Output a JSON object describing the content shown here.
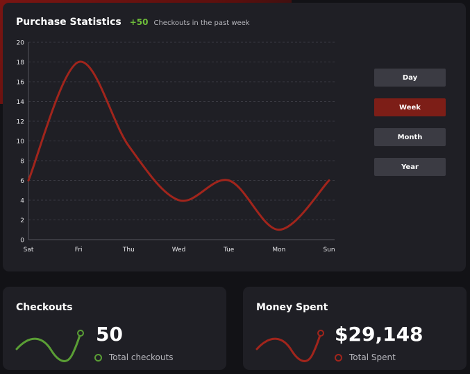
{
  "header": {
    "title": "Purchase Statistics",
    "delta": "+50",
    "subtitle": "Checkouts in the past week"
  },
  "range_buttons": [
    {
      "label": "Day",
      "active": false
    },
    {
      "label": "Week",
      "active": true
    },
    {
      "label": "Month",
      "active": false
    },
    {
      "label": "Year",
      "active": false
    }
  ],
  "colors": {
    "line": "#a1251c",
    "green": "#5a9e35",
    "accent_active": "#7d1e17"
  },
  "chart_data": {
    "type": "line",
    "categories": [
      "Sat",
      "Fri",
      "Thu",
      "Wed",
      "Tue",
      "Mon",
      "Sun"
    ],
    "series": [
      {
        "values": [
          6,
          18,
          9.5,
          4,
          6,
          1,
          6
        ]
      }
    ],
    "ylim": [
      0,
      20
    ],
    "yticks": [
      0,
      2,
      4,
      6,
      8,
      10,
      12,
      14,
      16,
      18,
      20
    ],
    "grid": true
  },
  "checkouts": {
    "title": "Checkouts",
    "value": "50",
    "label": "Total checkouts"
  },
  "money": {
    "title": "Money Spent",
    "value": "$29,148",
    "label": "Total Spent"
  }
}
